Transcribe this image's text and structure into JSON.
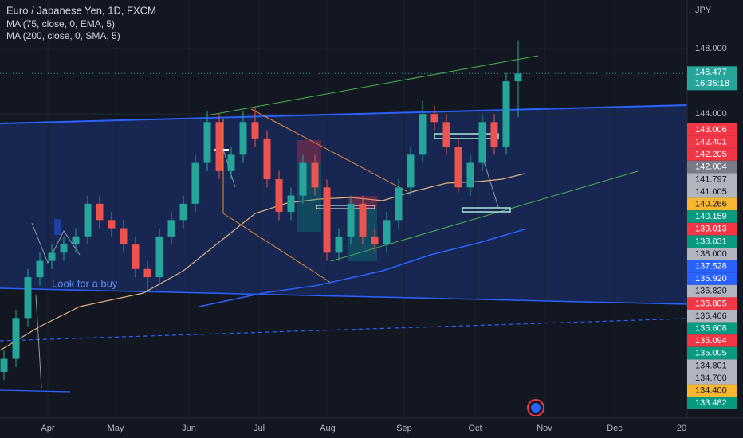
{
  "header": {
    "symbol": "Euro / Japanese Yen, 1D, FXCM",
    "indicators": [
      "MA (75, close, 0, EMA, 5)",
      "MA (200, close, 0, SMA, 5)"
    ],
    "currency": "JPY"
  },
  "chart_data": {
    "type": "candlestick",
    "annotation": "Look for a buy",
    "time_labels": [
      "Apr",
      "May",
      "Jun",
      "Jul",
      "Aug",
      "Sep",
      "Oct",
      "Nov",
      "Dec",
      "20"
    ],
    "ylim": [
      125.37,
      150.98
    ],
    "yticks": [
      {
        "value": 148,
        "label": "148.000"
      },
      {
        "value": 144,
        "label": "144.000"
      }
    ],
    "grid": true,
    "up_color": "#26a69a",
    "down_color": "#ef5350",
    "last_price": 146.477,
    "countdown": "16:35:18",
    "candles": [
      {
        "open": 128.2,
        "high": 129.5,
        "low": 127.7,
        "close": 129.0
      },
      {
        "open": 129.0,
        "high": 132.0,
        "low": 128.5,
        "close": 131.5
      },
      {
        "open": 131.5,
        "high": 134.5,
        "low": 131.0,
        "close": 134.0
      },
      {
        "open": 134.0,
        "high": 135.5,
        "low": 133.5,
        "close": 135.0
      },
      {
        "open": 135.0,
        "high": 136.0,
        "low": 134.5,
        "close": 135.5
      },
      {
        "open": 135.5,
        "high": 136.5,
        "low": 135.0,
        "close": 136.0
      },
      {
        "open": 136.0,
        "high": 137.0,
        "low": 135.5,
        "close": 136.5
      },
      {
        "open": 136.5,
        "high": 139.0,
        "low": 136.0,
        "close": 138.5
      },
      {
        "open": 138.5,
        "high": 139.0,
        "low": 137.0,
        "close": 137.5
      },
      {
        "open": 137.5,
        "high": 138.0,
        "low": 136.5,
        "close": 137.0
      },
      {
        "open": 137.0,
        "high": 137.5,
        "low": 135.5,
        "close": 136.0
      },
      {
        "open": 136.0,
        "high": 136.5,
        "low": 134.0,
        "close": 134.5
      },
      {
        "open": 134.5,
        "high": 135.0,
        "low": 133.2,
        "close": 134.0
      },
      {
        "open": 134.0,
        "high": 137.0,
        "low": 133.5,
        "close": 136.5
      },
      {
        "open": 136.5,
        "high": 138.0,
        "low": 136.0,
        "close": 137.5
      },
      {
        "open": 137.5,
        "high": 139.0,
        "low": 137.0,
        "close": 138.5
      },
      {
        "open": 138.5,
        "high": 141.5,
        "low": 138.0,
        "close": 141.0
      },
      {
        "open": 141.0,
        "high": 144.2,
        "low": 140.5,
        "close": 143.5
      },
      {
        "open": 143.5,
        "high": 144.0,
        "low": 140.0,
        "close": 140.5
      },
      {
        "open": 140.5,
        "high": 142.0,
        "low": 140.0,
        "close": 141.5
      },
      {
        "open": 141.5,
        "high": 144.2,
        "low": 141.0,
        "close": 143.5
      },
      {
        "open": 143.5,
        "high": 144.4,
        "low": 142.0,
        "close": 142.5
      },
      {
        "open": 142.5,
        "high": 143.0,
        "low": 139.5,
        "close": 140.0
      },
      {
        "open": 140.0,
        "high": 140.5,
        "low": 137.5,
        "close": 138.0
      },
      {
        "open": 138.0,
        "high": 139.5,
        "low": 137.5,
        "close": 139.0
      },
      {
        "open": 139.0,
        "high": 141.5,
        "low": 138.5,
        "close": 141.0
      },
      {
        "open": 141.0,
        "high": 141.5,
        "low": 139.0,
        "close": 139.5
      },
      {
        "open": 139.5,
        "high": 140.0,
        "low": 135.0,
        "close": 135.5
      },
      {
        "open": 135.5,
        "high": 137.0,
        "low": 135.0,
        "close": 136.5
      },
      {
        "open": 136.5,
        "high": 139.0,
        "low": 136.0,
        "close": 138.5
      },
      {
        "open": 138.5,
        "high": 139.0,
        "low": 136.0,
        "close": 136.5
      },
      {
        "open": 136.5,
        "high": 137.0,
        "low": 135.5,
        "close": 136.0
      },
      {
        "open": 136.0,
        "high": 138.0,
        "low": 135.5,
        "close": 137.5
      },
      {
        "open": 137.5,
        "high": 140.0,
        "low": 137.0,
        "close": 139.5
      },
      {
        "open": 139.5,
        "high": 142.0,
        "low": 139.0,
        "close": 141.5
      },
      {
        "open": 141.5,
        "high": 144.8,
        "low": 141.0,
        "close": 144.0
      },
      {
        "open": 144.0,
        "high": 144.5,
        "low": 143.0,
        "close": 143.5
      },
      {
        "open": 143.5,
        "high": 144.0,
        "low": 141.5,
        "close": 142.0
      },
      {
        "open": 142.0,
        "high": 142.5,
        "low": 139.2,
        "close": 139.5
      },
      {
        "open": 139.5,
        "high": 141.5,
        "low": 139.0,
        "close": 141.0
      },
      {
        "open": 141.0,
        "high": 144.0,
        "low": 140.5,
        "close": 143.5
      },
      {
        "open": 143.5,
        "high": 144.0,
        "low": 141.5,
        "close": 142.0
      },
      {
        "open": 142.0,
        "high": 146.5,
        "low": 141.5,
        "close": 146.0
      },
      {
        "open": 146.0,
        "high": 148.5,
        "low": 143.8,
        "close": 146.477
      }
    ],
    "price_labels": [
      {
        "label": "143.006",
        "color": "#f23645"
      },
      {
        "label": "142.401",
        "color": "#f23645"
      },
      {
        "label": "142.205",
        "color": "#f23645"
      },
      {
        "label": "142.004",
        "color": "#787b86"
      },
      {
        "label": "141.797",
        "color": "#b2b5be"
      },
      {
        "label": "141.005",
        "color": "#b2b5be"
      },
      {
        "label": "140.266",
        "color": "#f7b731"
      },
      {
        "label": "140.159",
        "color": "#089981"
      },
      {
        "label": "139.013",
        "color": "#f23645"
      },
      {
        "label": "138.031",
        "color": "#089981"
      },
      {
        "label": "138.000",
        "color": "#b2b5be"
      },
      {
        "label": "137.528",
        "color": "#2962ff"
      },
      {
        "label": "136.920",
        "color": "#2962ff"
      },
      {
        "label": "136.820",
        "color": "#b2b5be"
      },
      {
        "label": "136.805",
        "color": "#f23645"
      },
      {
        "label": "136.406",
        "color": "#b2b5be"
      },
      {
        "label": "135.608",
        "color": "#089981"
      },
      {
        "label": "135.094",
        "color": "#f23645"
      },
      {
        "label": "135.005",
        "color": "#089981"
      },
      {
        "label": "134.801",
        "color": "#b2b5be"
      },
      {
        "label": "134.700",
        "color": "#b2b5be"
      },
      {
        "label": "134.400",
        "color": "#f7b731"
      },
      {
        "label": "133.482",
        "color": "#089981"
      }
    ]
  }
}
